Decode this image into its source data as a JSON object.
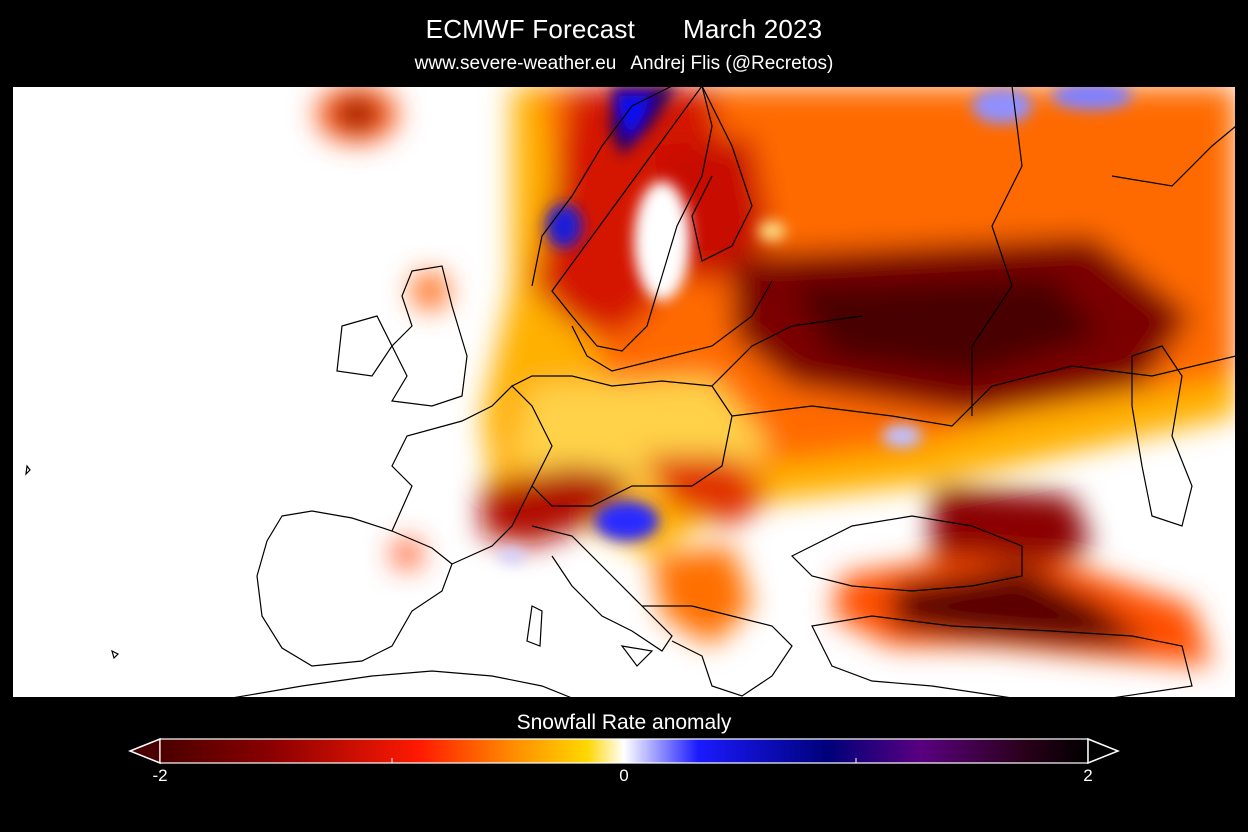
{
  "header": {
    "model": "ECMWF Forecast",
    "period": "March 2023",
    "website": "www.severe-weather.eu",
    "author": "Andrej Flis (@Recretos)"
  },
  "legend": {
    "title": "Snowfall Rate anomaly",
    "ticks": [
      "-2",
      "0",
      "2"
    ],
    "min": -2,
    "max": 2,
    "colors": [
      "#4a0000",
      "#8b0000",
      "#ff1a00",
      "#ff8c00",
      "#ffd700",
      "#ffffff",
      "#1a1aff",
      "#00007a",
      "#5a0080",
      "#2a001a",
      "#000000"
    ],
    "arrow_left_color": "#4a0000",
    "arrow_right_color": "#000000"
  },
  "map": {
    "region": "Europe",
    "background_color": "#ffffff",
    "border_color": "#000000"
  }
}
